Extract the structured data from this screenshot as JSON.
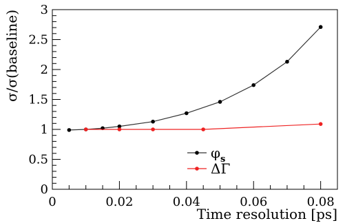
{
  "chart_data": {
    "type": "line",
    "xlabel": "Time resolution [ps]",
    "ylabel": "σ/σ(baseline)",
    "xlim": [
      0,
      0.085
    ],
    "ylim": [
      0,
      3
    ],
    "x_ticks": [
      0,
      0.02,
      0.04,
      0.06,
      0.08
    ],
    "x_tick_labels": [
      "0",
      "0.02",
      "0.04",
      "0.06",
      "0.08"
    ],
    "y_ticks": [
      0,
      0.5,
      1,
      1.5,
      2,
      2.5,
      3
    ],
    "y_tick_labels": [
      "0",
      "0.5",
      "1",
      "1.5",
      "2",
      "2.5",
      "3"
    ],
    "grid": false,
    "legend_position": "bottom-center",
    "series": [
      {
        "name": "φs",
        "legend_main": "φ",
        "legend_sub": "s",
        "color": "#333333",
        "points": [
          [
            0.005,
            0.99
          ],
          [
            0.01,
            1.0
          ],
          [
            0.015,
            1.02
          ],
          [
            0.02,
            1.05
          ],
          [
            0.03,
            1.13
          ],
          [
            0.04,
            1.27
          ],
          [
            0.05,
            1.46
          ],
          [
            0.06,
            1.74
          ],
          [
            0.07,
            2.13
          ],
          [
            0.08,
            2.71
          ]
        ]
      },
      {
        "name": "ΔΓ",
        "legend_main": "ΔΓ",
        "legend_sub": "",
        "color": "#ee2222",
        "points": [
          [
            0.01,
            1.0
          ],
          [
            0.02,
            1.0
          ],
          [
            0.03,
            1.0
          ],
          [
            0.045,
            1.0
          ],
          [
            0.08,
            1.09
          ]
        ]
      }
    ]
  }
}
